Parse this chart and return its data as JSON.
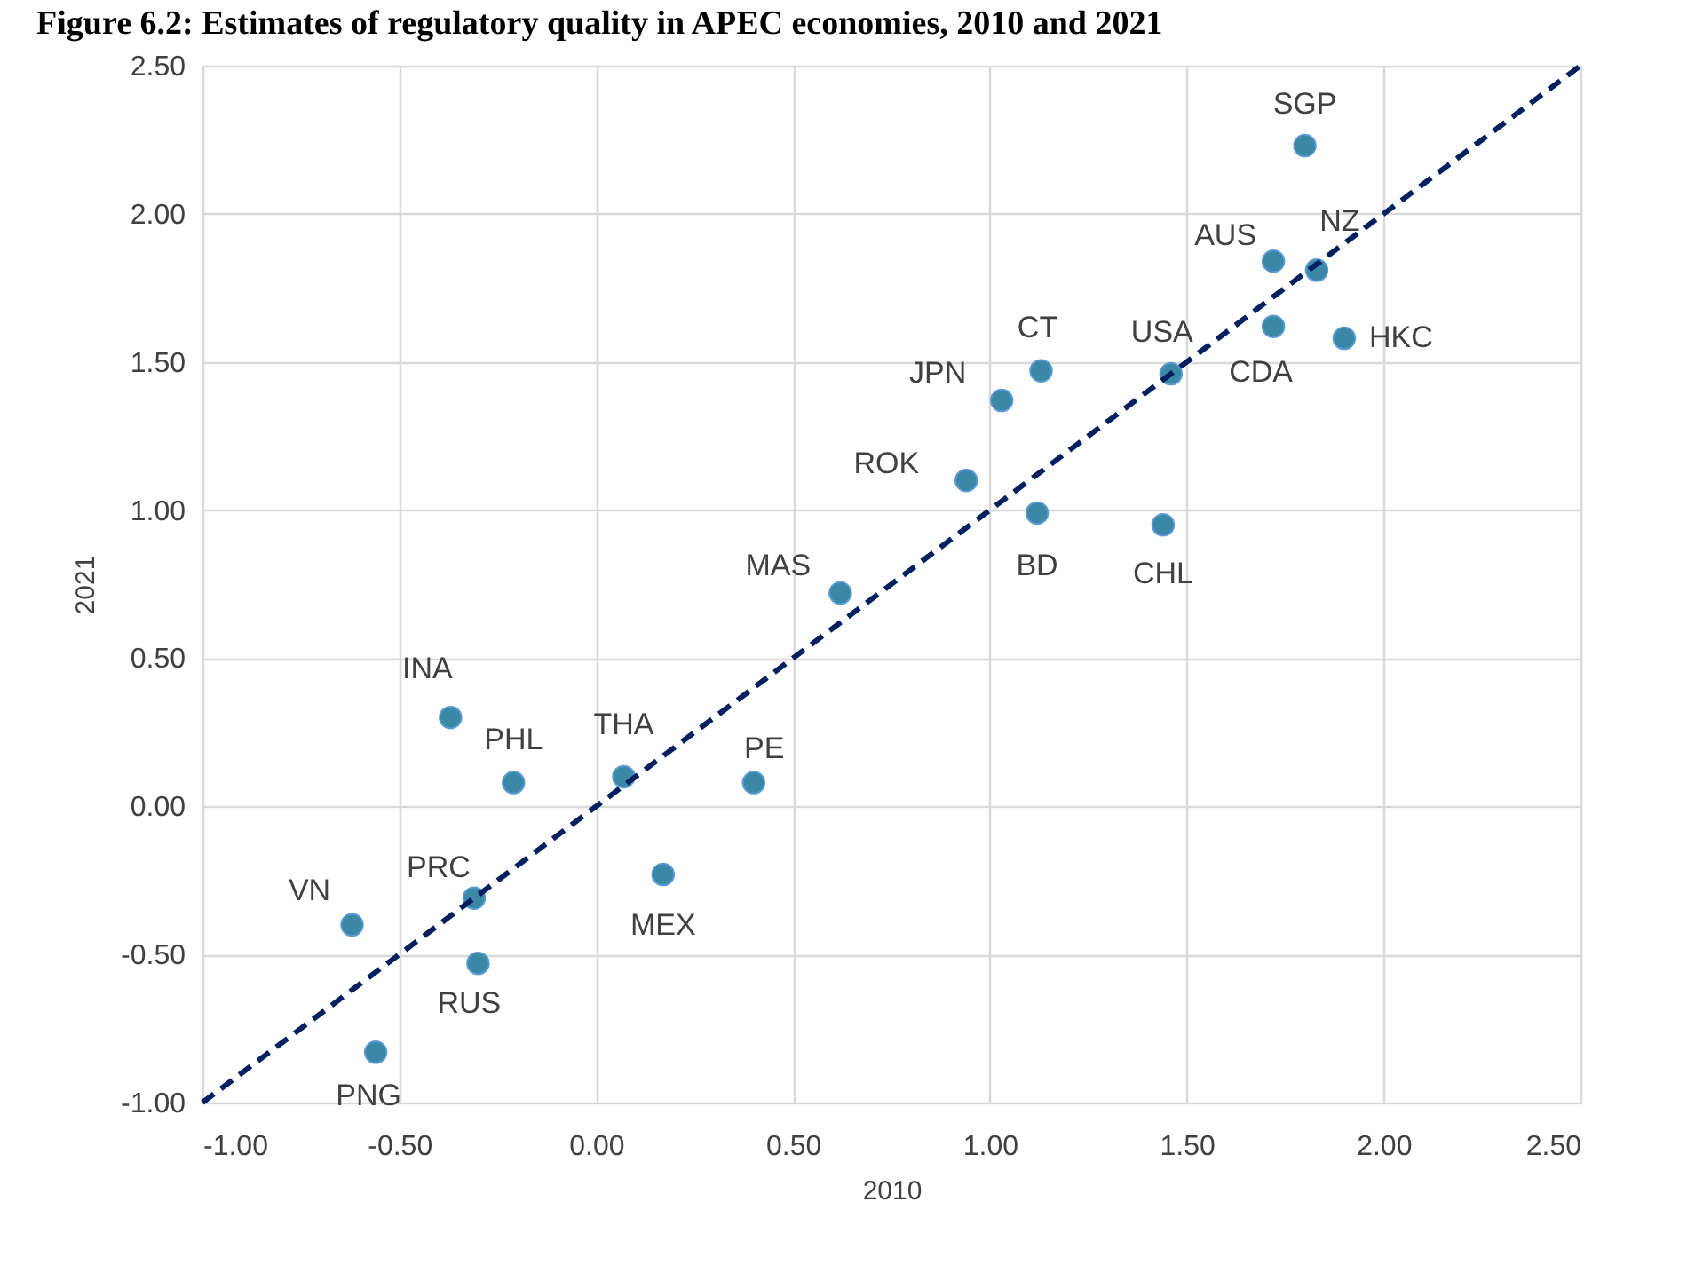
{
  "chart_data": {
    "type": "scatter",
    "title": "Figure 6.2: Estimates of regulatory quality in APEC economies, 2010 and 2021",
    "xlabel": "2010",
    "ylabel": "2021",
    "xlim": [
      -1,
      2.5
    ],
    "ylim": [
      -1,
      2.5
    ],
    "xticks": [
      {
        "value": -1,
        "label": "-1.00"
      },
      {
        "value": -0.5,
        "label": "-0.50"
      },
      {
        "value": 0,
        "label": "0.00"
      },
      {
        "value": 0.5,
        "label": "0.50"
      },
      {
        "value": 1,
        "label": "1.00"
      },
      {
        "value": 1.5,
        "label": "1.50"
      },
      {
        "value": 2,
        "label": "2.00"
      },
      {
        "value": 2.5,
        "label": "2.50"
      }
    ],
    "yticks": [
      {
        "value": -1,
        "label": "-1.00"
      },
      {
        "value": -0.5,
        "label": "-0.50"
      },
      {
        "value": 0,
        "label": "0.00"
      },
      {
        "value": 0.5,
        "label": "0.50"
      },
      {
        "value": 1,
        "label": "1.00"
      },
      {
        "value": 1.5,
        "label": "1.50"
      },
      {
        "value": 2,
        "label": "2.00"
      },
      {
        "value": 2.5,
        "label": "2.50"
      }
    ],
    "grid": true,
    "legend": false,
    "marker": "circle",
    "series": [
      {
        "type": "scatter",
        "color": "#3a87a6",
        "x": [
          1.8,
          1.72,
          1.83,
          1.72,
          1.9,
          1.46,
          1.13,
          1.03,
          0.94,
          1.12,
          1.44,
          0.62,
          -0.37,
          -0.21,
          0.07,
          0.4,
          -0.31,
          0.17,
          -0.62,
          -0.3,
          -0.56
        ],
        "values": [
          2.23,
          1.84,
          1.81,
          1.62,
          1.58,
          1.46,
          1.47,
          1.37,
          1.1,
          0.99,
          0.95,
          0.72,
          0.3,
          0.08,
          0.1,
          0.08,
          -0.31,
          -0.23,
          -0.4,
          -0.53,
          -0.83
        ]
      },
      {
        "type": "line",
        "color": "#002060",
        "line_style": "dashed",
        "marker": "none",
        "x": [
          -1,
          2.5
        ],
        "values": [
          -1,
          2.5
        ]
      }
    ],
    "annotations": [
      {
        "text": "SGP",
        "x": 1.8,
        "y": 2.23
      },
      {
        "text": "AUS",
        "x": 1.72,
        "y": 1.84
      },
      {
        "text": "NZ",
        "x": 1.83,
        "y": 1.81
      },
      {
        "text": "CDA",
        "x": 1.72,
        "y": 1.62
      },
      {
        "text": "HKC",
        "x": 1.9,
        "y": 1.58
      },
      {
        "text": "USA",
        "x": 1.46,
        "y": 1.46
      },
      {
        "text": "CT",
        "x": 1.13,
        "y": 1.47
      },
      {
        "text": "JPN",
        "x": 1.03,
        "y": 1.37
      },
      {
        "text": "ROK",
        "x": 0.94,
        "y": 1.1
      },
      {
        "text": "BD",
        "x": 1.12,
        "y": 0.99
      },
      {
        "text": "CHL",
        "x": 1.44,
        "y": 0.95
      },
      {
        "text": "MAS",
        "x": 0.62,
        "y": 0.72
      },
      {
        "text": "INA",
        "x": -0.37,
        "y": 0.3
      },
      {
        "text": "PHL",
        "x": -0.21,
        "y": 0.08
      },
      {
        "text": "THA",
        "x": 0.07,
        "y": 0.1
      },
      {
        "text": "PE",
        "x": 0.4,
        "y": 0.08
      },
      {
        "text": "PRC",
        "x": -0.31,
        "y": -0.31
      },
      {
        "text": "MEX",
        "x": 0.17,
        "y": -0.23
      },
      {
        "text": "VN",
        "x": -0.62,
        "y": -0.4
      },
      {
        "text": "RUS",
        "x": -0.3,
        "y": -0.53
      },
      {
        "text": "PNG",
        "x": -0.56,
        "y": -0.83
      }
    ]
  }
}
